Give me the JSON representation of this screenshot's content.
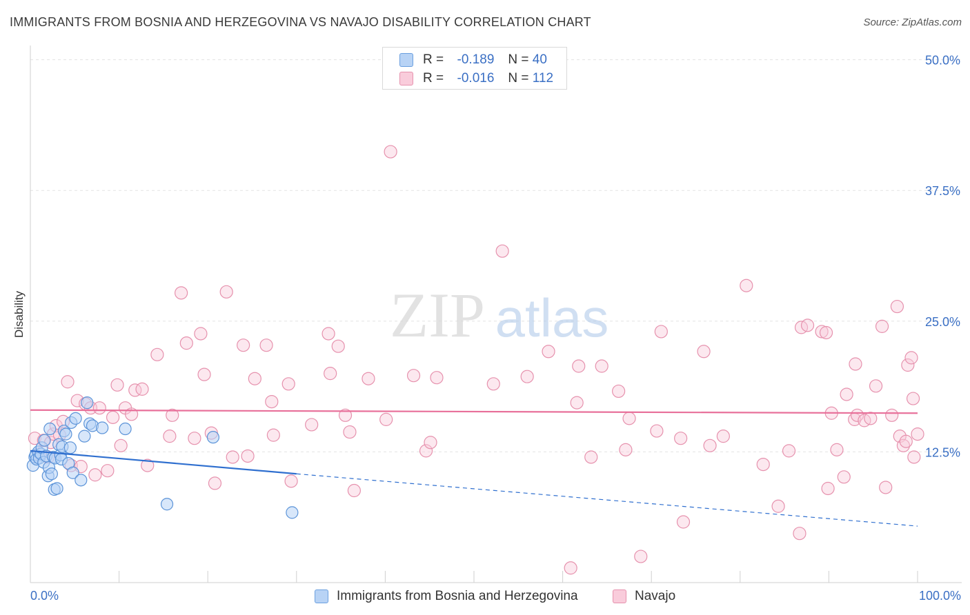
{
  "title": "IMMIGRANTS FROM BOSNIA AND HERZEGOVINA VS NAVAJO DISABILITY CORRELATION CHART",
  "source": "Source: ZipAtlas.com",
  "watermark": {
    "zip": "ZIP",
    "atlas": "atlas"
  },
  "legend": {
    "r_label": "R =",
    "n_label": "N =",
    "series": [
      {
        "r": "-0.189",
        "n": "40",
        "fill": "#b8d3f5",
        "stroke": "#6a9fdf"
      },
      {
        "r": "-0.016",
        "n": "112",
        "fill": "#f9ccdb",
        "stroke": "#e691ad"
      }
    ]
  },
  "bottom_legend": [
    {
      "label": "Immigrants from Bosnia and Herzegovina"
    },
    {
      "label": "Navajo"
    }
  ],
  "chart_data": {
    "type": "scatter",
    "title": "IMMIGRANTS FROM BOSNIA AND HERZEGOVINA VS NAVAJO DISABILITY CORRELATION CHART",
    "xlabel": "",
    "ylabel": "Disability",
    "x_tick_labels": [
      "0.0%",
      "100.0%"
    ],
    "y_tick_labels": [
      "12.5%",
      "25.0%",
      "37.5%",
      "50.0%"
    ],
    "y_ticks": [
      12.5,
      25.0,
      37.5,
      50.0
    ],
    "xlim": [
      0,
      100
    ],
    "ylim": [
      0,
      50.5
    ],
    "grid": "horizontal dashed",
    "legend_position": "top-center",
    "colors": {
      "blue": "#5b93d8",
      "blue_line": "#2f6fcf",
      "pink": "#e891ad",
      "pink_line": "#e8709a",
      "tick_text": "#3a6fc4"
    },
    "series": [
      {
        "name": "Immigrants from Bosnia and Herzegovina",
        "color": "#6a9fdf",
        "trend": {
          "x0": 0,
          "y0": 12.6,
          "x1": 30,
          "y1": 10.4,
          "dashed_to": 100,
          "dashed_y": 5.4
        },
        "points": [
          [
            0.3,
            11.2
          ],
          [
            0.5,
            12.0
          ],
          [
            0.6,
            12.2
          ],
          [
            0.7,
            11.8
          ],
          [
            0.9,
            12.5
          ],
          [
            1.0,
            11.9
          ],
          [
            1.2,
            12.3
          ],
          [
            1.3,
            12.9
          ],
          [
            1.5,
            11.5
          ],
          [
            1.6,
            13.6
          ],
          [
            1.8,
            12.1
          ],
          [
            2.0,
            10.2
          ],
          [
            2.1,
            11.0
          ],
          [
            2.2,
            14.7
          ],
          [
            2.4,
            10.4
          ],
          [
            2.6,
            12.0
          ],
          [
            2.7,
            8.9
          ],
          [
            2.8,
            11.9
          ],
          [
            3.0,
            9.0
          ],
          [
            3.2,
            13.2
          ],
          [
            3.4,
            12.2
          ],
          [
            3.5,
            11.8
          ],
          [
            3.6,
            13.0
          ],
          [
            3.8,
            14.5
          ],
          [
            4.0,
            14.2
          ],
          [
            4.3,
            11.4
          ],
          [
            4.5,
            12.9
          ],
          [
            4.6,
            15.3
          ],
          [
            4.8,
            10.5
          ],
          [
            5.1,
            15.7
          ],
          [
            5.7,
            9.8
          ],
          [
            6.1,
            14.0
          ],
          [
            6.4,
            17.2
          ],
          [
            6.7,
            15.2
          ],
          [
            7.0,
            15.0
          ],
          [
            8.1,
            14.8
          ],
          [
            10.7,
            14.7
          ],
          [
            15.4,
            7.5
          ],
          [
            20.6,
            13.9
          ],
          [
            29.5,
            6.7
          ]
        ]
      },
      {
        "name": "Navajo",
        "color": "#e891ad",
        "trend": {
          "x0": 0,
          "y0": 16.5,
          "x1": 100,
          "y1": 16.2
        },
        "points": [
          [
            0.5,
            13.8
          ],
          [
            1.0,
            12.3
          ],
          [
            1.5,
            13.6
          ],
          [
            2.0,
            12.0
          ],
          [
            2.3,
            13.4
          ],
          [
            2.6,
            14.2
          ],
          [
            2.9,
            15.0
          ],
          [
            3.3,
            14.1
          ],
          [
            3.7,
            15.4
          ],
          [
            4.2,
            19.2
          ],
          [
            4.6,
            11.2
          ],
          [
            5.3,
            17.4
          ],
          [
            5.7,
            11.1
          ],
          [
            6.2,
            17.1
          ],
          [
            6.8,
            16.7
          ],
          [
            7.3,
            10.3
          ],
          [
            7.8,
            16.7
          ],
          [
            8.7,
            10.7
          ],
          [
            9.3,
            15.8
          ],
          [
            9.8,
            18.9
          ],
          [
            10.2,
            13.1
          ],
          [
            10.7,
            16.7
          ],
          [
            11.4,
            16.1
          ],
          [
            11.8,
            18.4
          ],
          [
            12.6,
            18.5
          ],
          [
            13.2,
            11.2
          ],
          [
            14.3,
            21.8
          ],
          [
            15.7,
            14.0
          ],
          [
            16.0,
            16.0
          ],
          [
            17.0,
            27.7
          ],
          [
            17.6,
            22.9
          ],
          [
            18.5,
            13.8
          ],
          [
            19.2,
            23.8
          ],
          [
            19.6,
            19.9
          ],
          [
            20.4,
            14.3
          ],
          [
            20.8,
            9.5
          ],
          [
            22.1,
            27.8
          ],
          [
            22.8,
            12.0
          ],
          [
            24.0,
            22.7
          ],
          [
            24.5,
            12.1
          ],
          [
            25.3,
            19.5
          ],
          [
            26.6,
            22.7
          ],
          [
            27.2,
            17.3
          ],
          [
            27.4,
            14.1
          ],
          [
            29.1,
            19.0
          ],
          [
            29.4,
            9.7
          ],
          [
            31.7,
            15.1
          ],
          [
            33.6,
            23.8
          ],
          [
            33.8,
            20.0
          ],
          [
            34.7,
            22.6
          ],
          [
            35.5,
            16.0
          ],
          [
            36.0,
            14.4
          ],
          [
            36.5,
            8.8
          ],
          [
            38.1,
            19.5
          ],
          [
            40.1,
            15.6
          ],
          [
            40.6,
            41.2
          ],
          [
            43.2,
            19.8
          ],
          [
            44.6,
            12.6
          ],
          [
            45.1,
            13.4
          ],
          [
            45.8,
            19.6
          ],
          [
            52.2,
            19.0
          ],
          [
            53.2,
            31.7
          ],
          [
            56.0,
            19.7
          ],
          [
            58.4,
            22.1
          ],
          [
            60.9,
            1.4
          ],
          [
            61.6,
            17.2
          ],
          [
            61.8,
            20.7
          ],
          [
            63.2,
            12.0
          ],
          [
            64.4,
            20.7
          ],
          [
            66.3,
            18.3
          ],
          [
            67.1,
            12.7
          ],
          [
            67.5,
            15.7
          ],
          [
            68.8,
            2.5
          ],
          [
            70.6,
            14.5
          ],
          [
            71.1,
            24.0
          ],
          [
            73.3,
            13.8
          ],
          [
            73.6,
            5.8
          ],
          [
            75.9,
            22.1
          ],
          [
            76.6,
            13.1
          ],
          [
            78.1,
            14.0
          ],
          [
            80.7,
            28.4
          ],
          [
            82.6,
            11.3
          ],
          [
            84.3,
            7.3
          ],
          [
            85.5,
            12.6
          ],
          [
            86.7,
            4.7
          ],
          [
            86.9,
            24.4
          ],
          [
            87.6,
            24.6
          ],
          [
            89.2,
            24.0
          ],
          [
            89.7,
            23.9
          ],
          [
            89.9,
            9.0
          ],
          [
            90.3,
            16.2
          ],
          [
            90.9,
            12.7
          ],
          [
            91.7,
            10.1
          ],
          [
            92.0,
            18.0
          ],
          [
            92.9,
            15.6
          ],
          [
            93.0,
            20.9
          ],
          [
            93.2,
            16.0
          ],
          [
            94.0,
            15.5
          ],
          [
            94.7,
            15.7
          ],
          [
            95.3,
            18.8
          ],
          [
            96.0,
            24.5
          ],
          [
            97.7,
            26.4
          ],
          [
            98.0,
            14.0
          ],
          [
            98.4,
            13.1
          ],
          [
            98.9,
            20.8
          ],
          [
            99.3,
            21.5
          ],
          [
            99.6,
            12.0
          ],
          [
            96.4,
            9.1
          ],
          [
            97.1,
            16.0
          ],
          [
            98.7,
            13.5
          ],
          [
            99.5,
            17.6
          ],
          [
            100.0,
            14.2
          ]
        ]
      }
    ]
  }
}
